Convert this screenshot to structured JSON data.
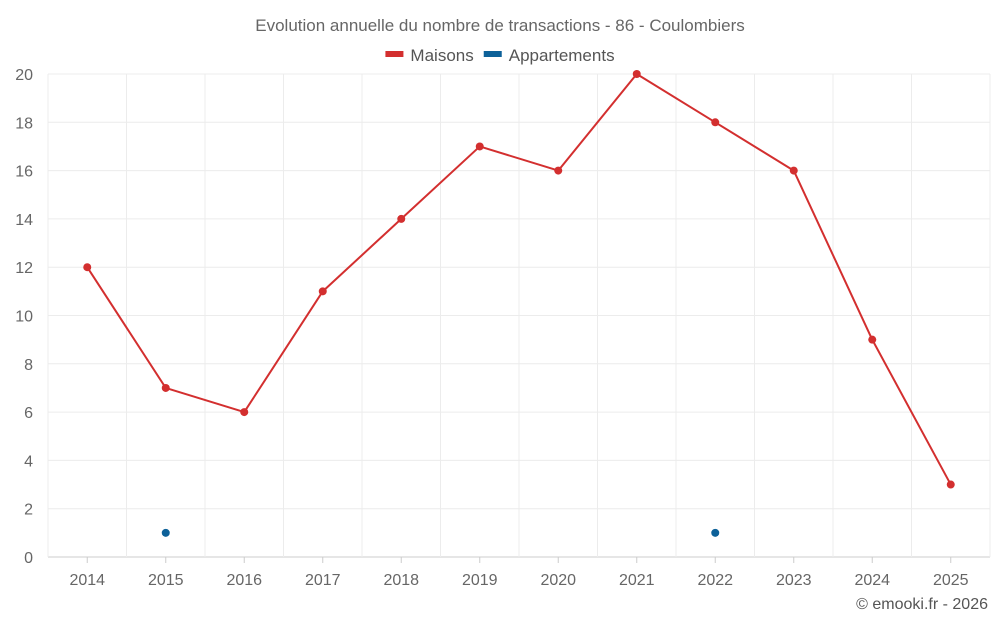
{
  "chart_data": {
    "type": "line",
    "title": "Evolution annuelle du nombre de transactions - 86 - Coulombiers",
    "x": [
      "2014",
      "2015",
      "2016",
      "2017",
      "2018",
      "2019",
      "2020",
      "2021",
      "2022",
      "2023",
      "2024",
      "2025"
    ],
    "ylim": [
      0,
      20
    ],
    "yticks": [
      0,
      2,
      4,
      6,
      8,
      10,
      12,
      14,
      16,
      18,
      20
    ],
    "grid": true,
    "legend_position": "top-center",
    "series": [
      {
        "name": "Maisons",
        "color": "#d32f2f",
        "values": [
          12,
          7,
          6,
          11,
          14,
          17,
          16,
          20,
          18,
          16,
          9,
          3
        ]
      },
      {
        "name": "Appartements",
        "color": "#0d6199",
        "values": [
          null,
          1,
          null,
          null,
          null,
          null,
          null,
          null,
          1,
          null,
          null,
          null
        ]
      }
    ]
  },
  "credit": "© emooki.fr - 2026"
}
